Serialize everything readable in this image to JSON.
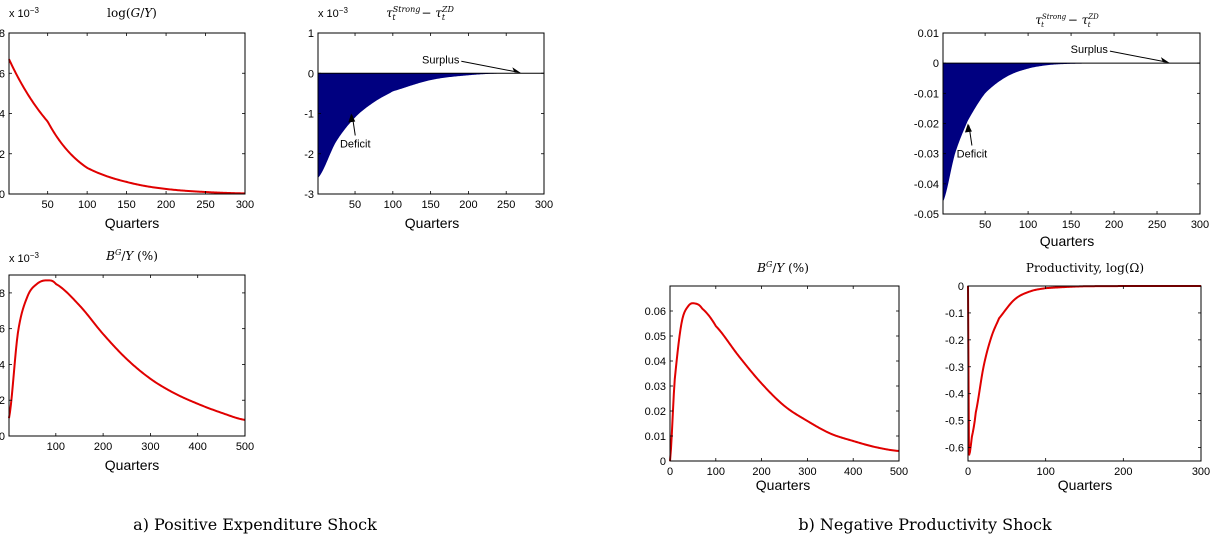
{
  "captions": {
    "a": "a) Positive Expenditure Shock",
    "b": "b) Negative Productivity Shock"
  },
  "colors": {
    "line": "#e00000",
    "fill": "#000080",
    "axes": "#000000"
  },
  "chart_data": [
    {
      "id": "a1",
      "type": "line",
      "title": "log(G/Y)",
      "xlabel": "Quarters",
      "ylabel": "",
      "exponent": "x 10⁻³",
      "xlim": [
        1,
        300
      ],
      "ylim": [
        0,
        8
      ],
      "xticks": [
        50,
        100,
        150,
        200,
        250,
        300
      ],
      "yticks": [
        0,
        2,
        4,
        6,
        8
      ],
      "series": [
        {
          "model": "exp",
          "values": {
            "x": [
              1,
              50,
              100,
              150,
              200,
              250,
              300
            ],
            "y": [
              6.7,
              3.6,
              1.3,
              0.6,
              0.25,
              0.1,
              0.03
            ]
          }
        }
      ]
    },
    {
      "id": "a2",
      "type": "area",
      "title": "τt^Strong − τt^ZD",
      "xlabel": "Quarters",
      "ylabel": "",
      "exponent": "x 10⁻³",
      "xlim": [
        1,
        300
      ],
      "ylim": [
        -3,
        1
      ],
      "xticks": [
        50,
        100,
        150,
        200,
        250,
        300
      ],
      "yticks": [
        -3,
        -2,
        -1,
        0,
        1
      ],
      "series": [
        {
          "values": {
            "x": [
              1,
              25,
              50,
              75,
              100,
              150,
              200,
              250,
              300
            ],
            "y": [
              -2.6,
              -1.7,
              -1.1,
              -0.72,
              -0.45,
              -0.17,
              -0.05,
              0.0,
              0.0
            ]
          }
        }
      ],
      "annotations": [
        {
          "text": "Surplus",
          "x": 270,
          "y": 0
        },
        {
          "text": "Deficit",
          "x": 45,
          "y": -1.0
        }
      ]
    },
    {
      "id": "a3",
      "type": "line",
      "title": "B^G/Y (%)",
      "xlabel": "Quarters",
      "ylabel": "",
      "exponent": "x 10⁻³",
      "xlim": [
        1,
        500
      ],
      "ylim": [
        0,
        9
      ],
      "xticks": [
        100,
        200,
        300,
        400,
        500
      ],
      "yticks": [
        0,
        2,
        4,
        6,
        8
      ],
      "series": [
        {
          "values": {
            "x": [
              1,
              20,
              40,
              60,
              80,
              100,
              150,
              200,
              250,
              300,
              350,
              400,
              450,
              500
            ],
            "y": [
              1.0,
              5.8,
              7.8,
              8.5,
              8.7,
              8.5,
              7.3,
              5.7,
              4.3,
              3.2,
              2.4,
              1.8,
              1.3,
              0.9
            ]
          }
        }
      ]
    },
    {
      "id": "b1",
      "type": "area",
      "title": "τt^Strong − τt^ZD",
      "xlabel": "Quarters",
      "ylabel": "",
      "xlim": [
        1,
        300
      ],
      "ylim": [
        -0.05,
        0.01
      ],
      "xticks": [
        50,
        100,
        150,
        200,
        250,
        300
      ],
      "yticks": [
        -0.05,
        -0.04,
        -0.03,
        -0.02,
        -0.01,
        0,
        0.01
      ],
      "series": [
        {
          "values": {
            "x": [
              1,
              15,
              30,
              50,
              75,
              100,
              125,
              150,
              200,
              300
            ],
            "y": [
              -0.046,
              -0.03,
              -0.019,
              -0.01,
              -0.0045,
              -0.0018,
              -0.0006,
              -0.0002,
              0.0,
              0.0
            ]
          }
        }
      ],
      "annotations": [
        {
          "text": "Surplus",
          "x": 265,
          "y": 0
        },
        {
          "text": "Deficit",
          "x": 30,
          "y": -0.02
        }
      ]
    },
    {
      "id": "b2",
      "type": "line",
      "title": "B^G/Y (%)",
      "xlabel": "Quarters",
      "ylabel": "",
      "xlim": [
        0,
        500
      ],
      "ylim": [
        0,
        0.07
      ],
      "xticks": [
        0,
        100,
        200,
        300,
        400,
        500
      ],
      "yticks": [
        0,
        0.01,
        0.02,
        0.03,
        0.04,
        0.05,
        0.06
      ],
      "series": [
        {
          "values": {
            "x": [
              0,
              10,
              25,
              40,
              55,
              70,
              100,
              150,
              200,
              250,
              300,
              350,
              400,
              450,
              500
            ],
            "y": [
              0.0,
              0.032,
              0.055,
              0.062,
              0.063,
              0.061,
              0.054,
              0.042,
              0.031,
              0.022,
              0.016,
              0.011,
              0.008,
              0.0055,
              0.004
            ]
          }
        }
      ]
    },
    {
      "id": "b3",
      "type": "line",
      "title": "Productivity, log(Ω)",
      "xlabel": "Quarters",
      "ylabel": "",
      "xlim": [
        0,
        300
      ],
      "ylim": [
        -0.65,
        0
      ],
      "xticks": [
        0,
        100,
        200,
        300
      ],
      "yticks": [
        -0.6,
        -0.5,
        -0.4,
        -0.3,
        -0.2,
        -0.1,
        0
      ],
      "series": [
        {
          "values": {
            "x": [
              0,
              1,
              3,
              5,
              10,
              20,
              30,
              40,
              60,
              80,
              100,
              150,
              300
            ],
            "y": [
              0.0,
              -0.6,
              -0.6,
              -0.56,
              -0.47,
              -0.3,
              -0.19,
              -0.12,
              -0.05,
              -0.02,
              -0.008,
              -0.001,
              0.0
            ]
          }
        }
      ]
    }
  ]
}
